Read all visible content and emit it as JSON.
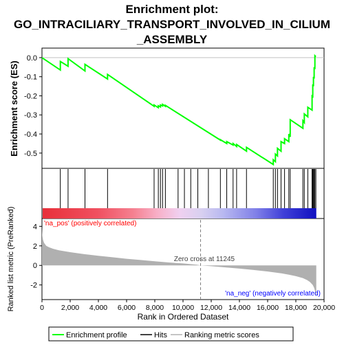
{
  "title": "Enrichment plot:\nGO_INTRACILIARY_TRANSPORT_INVOLVED_IN_CILIUM\n_ASSEMBLY",
  "colors": {
    "es_line": "#00ff00",
    "hits": "#000000",
    "metric_fill": "#b0b0b0",
    "pos_label": "#ff0000",
    "neg_label": "#0000ff",
    "zero_cross_line": "#808080"
  },
  "legend": {
    "items": [
      {
        "label": "Enrichment profile",
        "icon": "green-line-icon"
      },
      {
        "label": "Hits",
        "icon": "black-line-icon"
      },
      {
        "label": "Ranking metric scores",
        "icon": "gray-line-icon"
      }
    ]
  },
  "chart_data": [
    {
      "type": "line",
      "name": "enrichment-profile",
      "ylabel": "Enrichment score (ES)",
      "xlim": [
        0,
        20000
      ],
      "ylim": [
        -0.58,
        0.05
      ],
      "yticks": [
        0.0,
        -0.1,
        -0.2,
        -0.3,
        -0.4,
        -0.5
      ],
      "ytick_labels": [
        "0.0",
        "-0.1",
        "-0.2",
        "-0.3",
        "-0.4",
        "-0.5"
      ],
      "grid": false,
      "x": [
        0,
        1300,
        1300,
        1850,
        1850,
        3050,
        3050,
        4650,
        4650,
        7950,
        7950,
        8250,
        8250,
        8400,
        8400,
        8550,
        8550,
        8750,
        8750,
        12650,
        12650,
        13100,
        13100,
        13550,
        13550,
        13800,
        13800,
        14500,
        14500,
        16400,
        16400,
        16550,
        16550,
        16700,
        16700,
        16950,
        16950,
        17200,
        17200,
        17500,
        17500,
        17600,
        17600,
        18500,
        18500,
        18600,
        18600,
        18850,
        18850,
        19150,
        19150,
        19200,
        19200,
        19250,
        19250,
        19300,
        19300,
        19350,
        19350,
        19420,
        19420
      ],
      "y": [
        0.0,
        -0.065,
        -0.02,
        -0.045,
        -0.005,
        -0.07,
        -0.035,
        -0.112,
        -0.088,
        -0.255,
        -0.248,
        -0.262,
        -0.252,
        -0.258,
        -0.248,
        -0.253,
        -0.245,
        -0.255,
        -0.25,
        -0.432,
        -0.43,
        -0.45,
        -0.44,
        -0.458,
        -0.45,
        -0.465,
        -0.455,
        -0.49,
        -0.47,
        -0.56,
        -0.535,
        -0.545,
        -0.505,
        -0.515,
        -0.475,
        -0.49,
        -0.44,
        -0.45,
        -0.425,
        -0.44,
        -0.4,
        -0.415,
        -0.325,
        -0.37,
        -0.33,
        -0.34,
        -0.295,
        -0.31,
        -0.26,
        -0.275,
        -0.195,
        -0.21,
        -0.14,
        -0.15,
        -0.1,
        -0.11,
        -0.05,
        -0.06,
        0.01,
        0.005,
        0.005
      ]
    },
    {
      "type": "hits",
      "name": "hits",
      "xlim": [
        0,
        20000
      ],
      "hit_ranks": [
        1300,
        1850,
        3050,
        4650,
        7950,
        8250,
        8400,
        8550,
        8750,
        9650,
        10100,
        10550,
        11050,
        11800,
        12650,
        13100,
        13550,
        13800,
        14500,
        16400,
        16550,
        16700,
        16950,
        17200,
        17500,
        17600,
        18500,
        18600,
        18850,
        19150,
        19200,
        19250,
        19300,
        19350,
        19420
      ]
    },
    {
      "type": "area",
      "name": "ranked-list-metric",
      "ylabel": "Ranked list metric (PreRanked)",
      "xlabel": "Rank in Ordered Dataset",
      "xlim": [
        0,
        20000
      ],
      "ylim": [
        -3.5,
        4.8
      ],
      "xticks": [
        0,
        2000,
        4000,
        6000,
        8000,
        10000,
        12000,
        14000,
        16000,
        18000,
        20000
      ],
      "xtick_labels": [
        "0",
        "2,000",
        "4,000",
        "6,000",
        "8,000",
        "10,000",
        "12,000",
        "14,000",
        "16,000",
        "18,000",
        "20,000"
      ],
      "yticks": [
        4,
        2,
        0,
        -2
      ],
      "ytick_labels": [
        "4",
        "2",
        "0",
        "-2"
      ],
      "x": [
        0,
        30,
        80,
        150,
        300,
        500,
        800,
        1200,
        2000,
        3000,
        4000,
        5000,
        6000,
        7000,
        8000,
        9000,
        10000,
        11000,
        11245,
        12000,
        13000,
        14000,
        15000,
        16000,
        17000,
        17500,
        18000,
        18500,
        18800,
        19000,
        19200,
        19300,
        19400,
        19450
      ],
      "values": [
        3.9,
        3.0,
        2.6,
        2.3,
        2.0,
        1.85,
        1.7,
        1.55,
        1.35,
        1.15,
        0.98,
        0.83,
        0.68,
        0.55,
        0.42,
        0.3,
        0.2,
        0.07,
        0.0,
        -0.08,
        -0.2,
        -0.33,
        -0.47,
        -0.62,
        -0.82,
        -0.95,
        -1.1,
        -1.3,
        -1.5,
        -1.7,
        -2.0,
        -2.3,
        -2.8,
        -3.3
      ],
      "zero_cross_label": "Zero cross at 11245",
      "zero_cross": 11245,
      "pos_label": "'na_pos' (positively correlated)",
      "neg_label": "'na_neg' (negatively correlated)"
    }
  ]
}
